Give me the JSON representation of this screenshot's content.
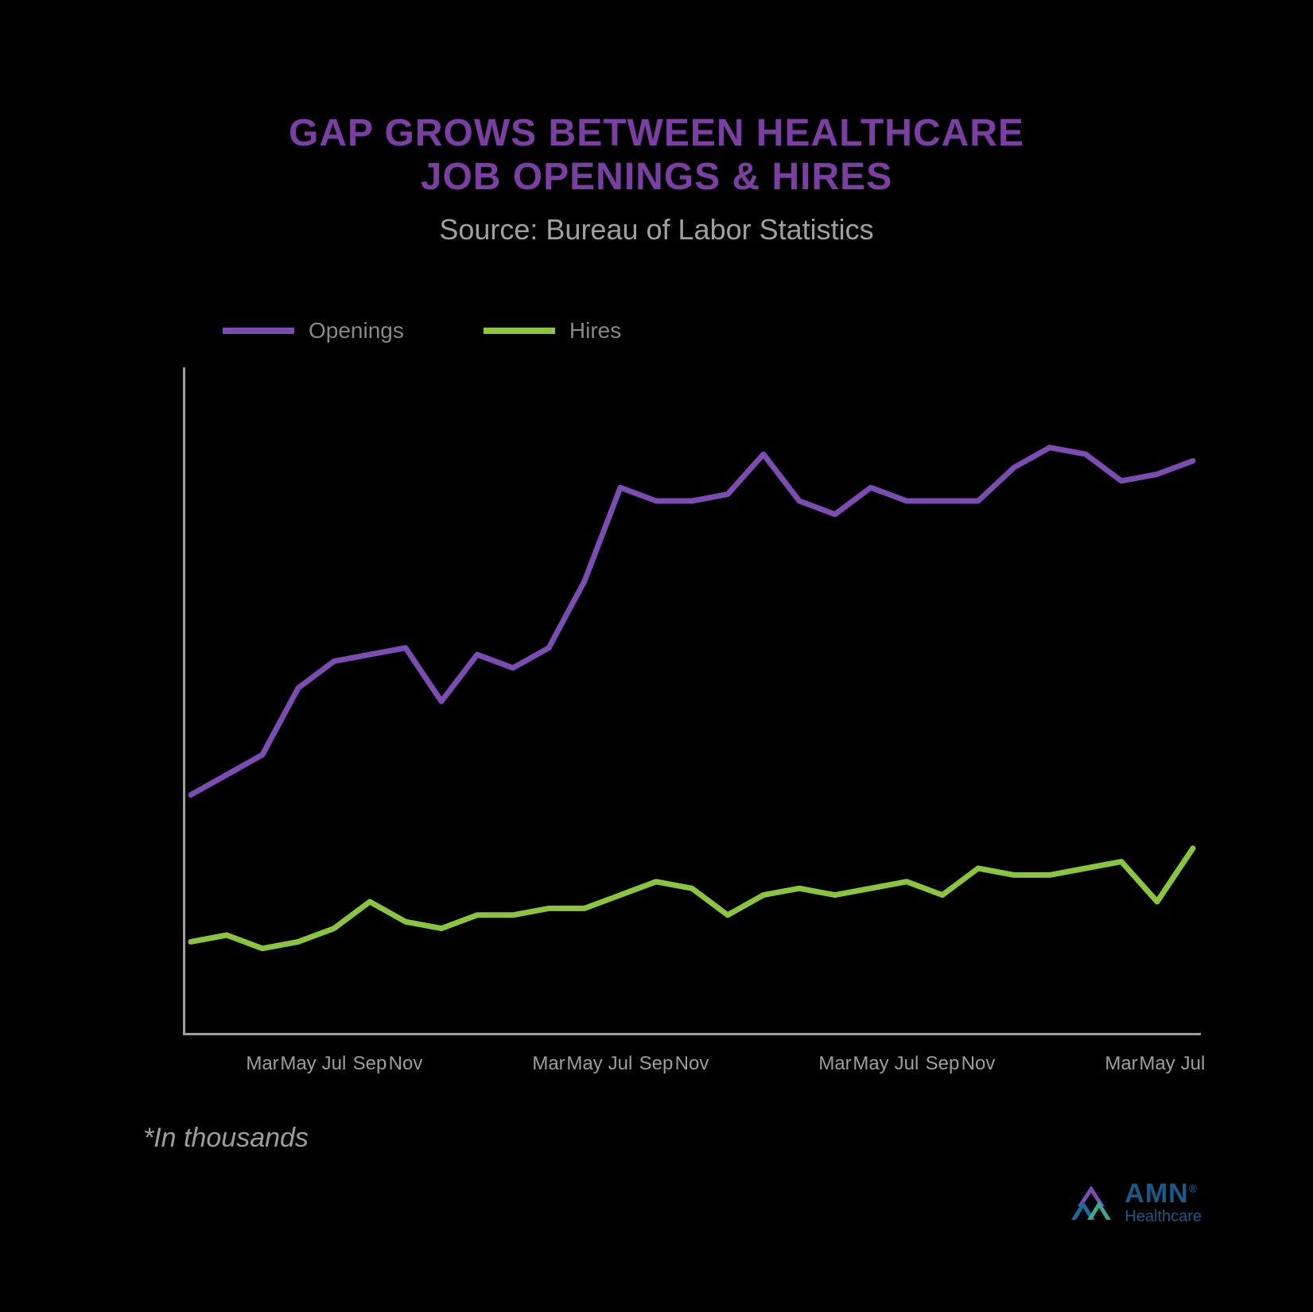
{
  "title_line1": "GAP GROWS BETWEEN HEALTHCARE",
  "title_line2": "JOB OPENINGS & HIRES",
  "title_color": "#7b3fa3",
  "title_fontsize": 48,
  "subtitle": "Source: Bureau of Labor Statistics",
  "subtitle_color": "#a0a0a0",
  "subtitle_fontsize": 36,
  "background_color": "#000000",
  "legend": {
    "fontsize": 28,
    "label_color": "#888888",
    "items": [
      {
        "label": "Openings",
        "color": "#7b4db3"
      },
      {
        "label": "Hires",
        "color": "#8bc53f"
      }
    ]
  },
  "chart": {
    "type": "line",
    "xlim": [
      0,
      28
    ],
    "ylim": [
      0,
      100
    ],
    "axis_color": "#9e9e9e",
    "axis_width": 3,
    "line_width": 7,
    "x_ticks": [
      {
        "pos": 2,
        "label": "Mar"
      },
      {
        "pos": 3,
        "label": "May"
      },
      {
        "pos": 4,
        "label": "Jul"
      },
      {
        "pos": 5,
        "label": "Sep"
      },
      {
        "pos": 6,
        "label": "Nov"
      },
      {
        "pos": 10,
        "label": "Mar"
      },
      {
        "pos": 11,
        "label": "May"
      },
      {
        "pos": 12,
        "label": "Jul"
      },
      {
        "pos": 13,
        "label": "Sep"
      },
      {
        "pos": 14,
        "label": "Nov"
      },
      {
        "pos": 18,
        "label": "Mar"
      },
      {
        "pos": 19,
        "label": "May"
      },
      {
        "pos": 20,
        "label": "Jul"
      },
      {
        "pos": 21,
        "label": "Sep"
      },
      {
        "pos": 22,
        "label": "Nov"
      },
      {
        "pos": 26,
        "label": "Mar"
      },
      {
        "pos": 27,
        "label": "May"
      },
      {
        "pos": 28,
        "label": "Jul"
      }
    ],
    "xlabel_fontsize": 24,
    "xlabel_color": "#9e9e9e",
    "series": [
      {
        "name": "Openings",
        "color": "#7b4db3",
        "x": [
          0,
          1,
          2,
          3,
          4,
          5,
          6,
          7,
          8,
          9,
          10,
          11,
          12,
          13,
          14,
          15,
          16,
          17,
          18,
          19,
          20,
          21,
          22,
          23,
          24,
          25,
          26,
          27,
          28
        ],
        "y": [
          36,
          39,
          42,
          52,
          56,
          57,
          58,
          50,
          57,
          55,
          58,
          68,
          82,
          80,
          80,
          81,
          87,
          80,
          78,
          82,
          80,
          80,
          80,
          85,
          88,
          87,
          83,
          84,
          86
        ]
      },
      {
        "name": "Hires",
        "color": "#8bc53f",
        "x": [
          0,
          1,
          2,
          3,
          4,
          5,
          6,
          7,
          8,
          9,
          10,
          11,
          12,
          13,
          14,
          15,
          16,
          17,
          18,
          19,
          20,
          21,
          22,
          23,
          24,
          25,
          26,
          27,
          28
        ],
        "y": [
          14,
          15,
          13,
          14,
          16,
          20,
          17,
          16,
          18,
          18,
          19,
          19,
          21,
          23,
          22,
          18,
          21,
          22,
          21,
          22,
          23,
          21,
          25,
          24,
          24,
          25,
          26,
          20,
          28
        ]
      }
    ]
  },
  "footnote": "*In thousands",
  "footnote_color": "#9e9e9e",
  "footnote_fontsize": 34,
  "logo": {
    "main": "AMN",
    "sub": "Healthcare",
    "text_color": "#1a5a8a",
    "main_fontsize": 34,
    "sub_fontsize": 20,
    "mark_colors": {
      "top": "#7b4db3",
      "left": "#1a6aa0",
      "right": "#3aa88e"
    }
  }
}
